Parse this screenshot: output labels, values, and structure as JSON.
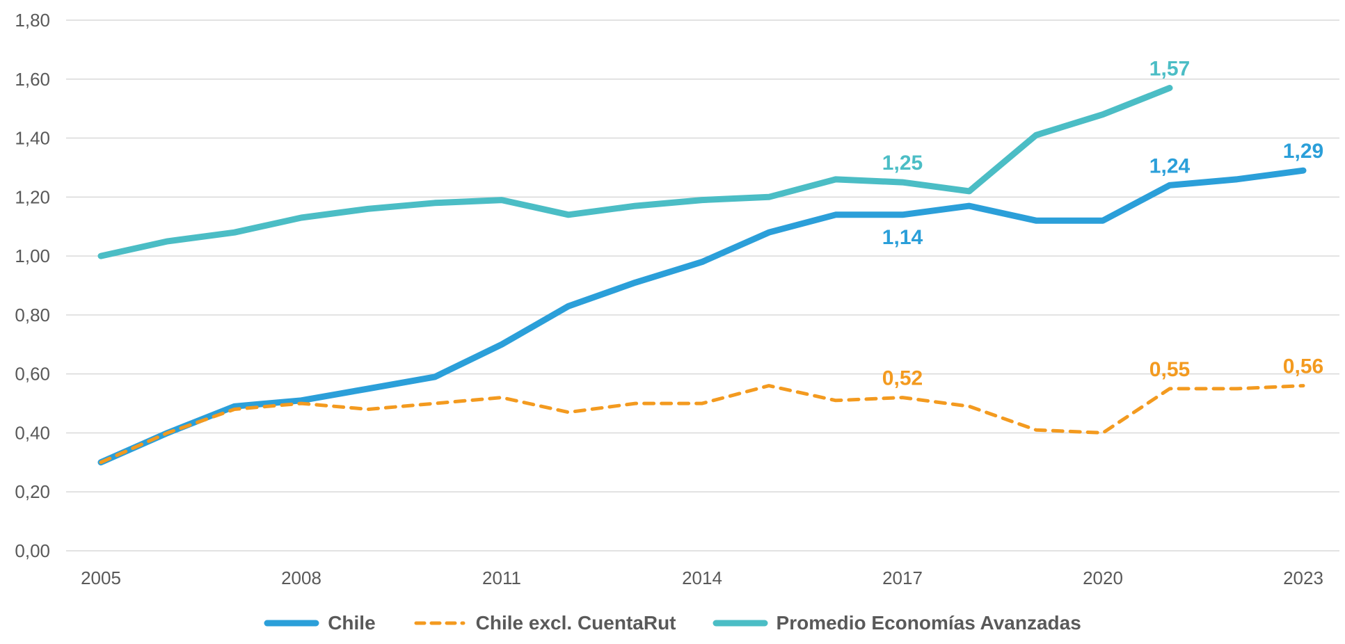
{
  "chart_data": {
    "type": "line",
    "title": "",
    "xlabel": "",
    "ylabel": "",
    "ylim": [
      0,
      1.8
    ],
    "yticks": [
      "0,00",
      "0,20",
      "0,40",
      "0,60",
      "0,80",
      "1,00",
      "1,20",
      "1,40",
      "1,60",
      "1,80"
    ],
    "ytick_values": [
      0,
      0.2,
      0.4,
      0.6,
      0.8,
      1.0,
      1.2,
      1.4,
      1.6,
      1.8
    ],
    "x": [
      2005,
      2006,
      2007,
      2008,
      2009,
      2010,
      2011,
      2012,
      2013,
      2014,
      2015,
      2016,
      2017,
      2018,
      2019,
      2020,
      2021,
      2022,
      2023
    ],
    "xticks": [
      "2005",
      "2008",
      "2011",
      "2014",
      "2017",
      "2020",
      "2023"
    ],
    "xtick_values": [
      2005,
      2008,
      2011,
      2014,
      2017,
      2020,
      2023
    ],
    "grid": true,
    "legend_position": "bottom",
    "series": [
      {
        "name": "Promedio Economías Avanzadas",
        "color": "#4BBDC5",
        "style": "solid",
        "values": [
          1.0,
          1.05,
          1.08,
          1.13,
          1.16,
          1.18,
          1.19,
          1.14,
          1.17,
          1.19,
          1.2,
          1.26,
          1.25,
          1.22,
          1.41,
          1.48,
          1.57,
          null,
          null
        ],
        "labels": [
          {
            "x": 2017,
            "text": "1,25",
            "pos": "above"
          },
          {
            "x": 2021,
            "text": "1,57",
            "pos": "above"
          }
        ]
      },
      {
        "name": "Chile",
        "color": "#2B9FD9",
        "style": "solid",
        "values": [
          0.3,
          0.4,
          0.49,
          0.51,
          0.55,
          0.59,
          0.7,
          0.83,
          0.91,
          0.98,
          1.08,
          1.14,
          1.14,
          1.17,
          1.12,
          1.12,
          1.24,
          1.26,
          1.29
        ],
        "labels": [
          {
            "x": 2017,
            "text": "1,14",
            "pos": "below"
          },
          {
            "x": 2021,
            "text": "1,24",
            "pos": "above"
          },
          {
            "x": 2023,
            "text": "1,29",
            "pos": "above"
          }
        ]
      },
      {
        "name": "Chile excl. CuentaRut",
        "color": "#F39A1F",
        "style": "dashed",
        "values": [
          0.3,
          0.4,
          0.48,
          0.5,
          0.48,
          0.5,
          0.52,
          0.47,
          0.5,
          0.5,
          0.56,
          0.51,
          0.52,
          0.49,
          0.41,
          0.4,
          0.55,
          0.55,
          0.56
        ],
        "labels": [
          {
            "x": 2017,
            "text": "0,52",
            "pos": "above"
          },
          {
            "x": 2021,
            "text": "0,55",
            "pos": "above"
          },
          {
            "x": 2023,
            "text": "0,56",
            "pos": "above"
          }
        ]
      }
    ]
  },
  "legend": {
    "items": [
      {
        "label": "Chile",
        "color": "#2B9FD9",
        "style": "solid"
      },
      {
        "label": "Chile excl. CuentaRut",
        "color": "#F39A1F",
        "style": "dashed"
      },
      {
        "label": "Promedio Economías Avanzadas",
        "color": "#4BBDC5",
        "style": "solid"
      }
    ]
  }
}
